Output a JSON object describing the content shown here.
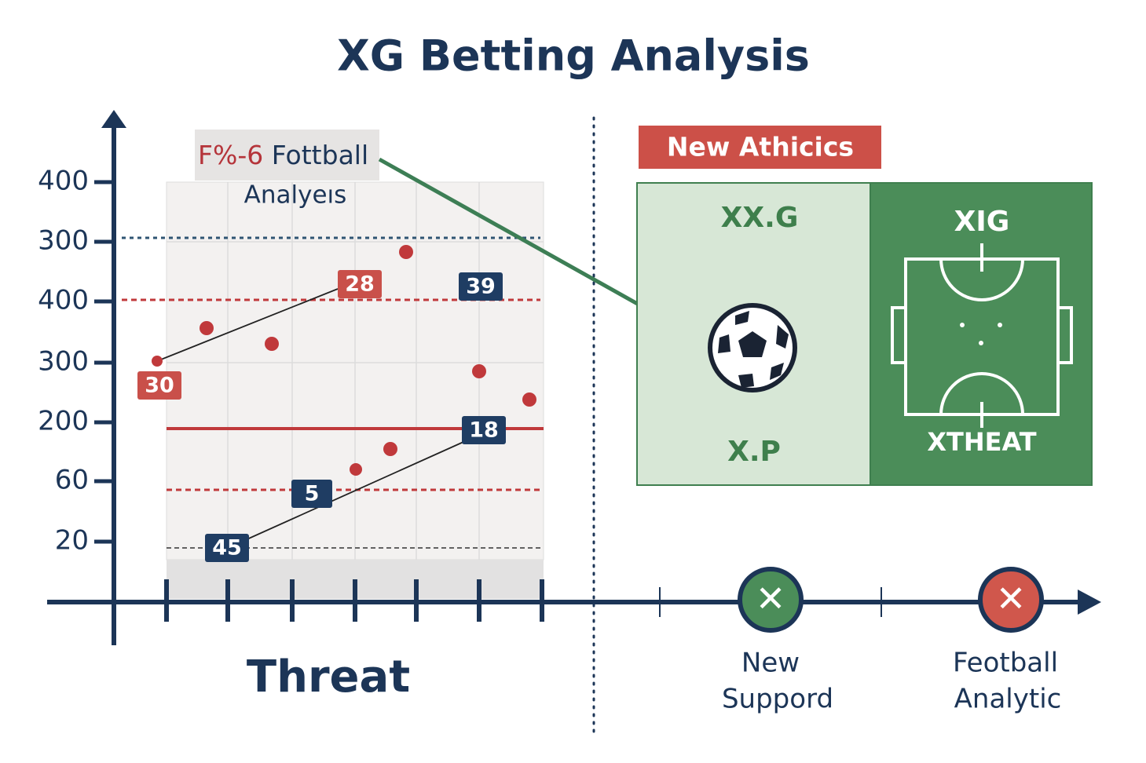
{
  "title": "XG Betting Analysis",
  "y_axis_labels": [
    "400",
    "300",
    "400",
    "300",
    "200",
    "60",
    "20"
  ],
  "panel": {
    "label_prefix": "F%-6",
    "label": "Fottball",
    "sublabel": "Analyeıs"
  },
  "badges": [
    "30",
    "28",
    "39",
    "18",
    "5",
    "45"
  ],
  "x_axis_label": "Threat",
  "metrics": {
    "title": "New Athicics",
    "left_top": "XX.G",
    "left_bottom": "X.P",
    "right_top": "XIG",
    "right_bottom": "XTHEAT"
  },
  "markers": [
    {
      "lines": [
        "New",
        "Suppord"
      ]
    },
    {
      "lines": [
        "Feotball",
        "Analytic"
      ]
    }
  ]
}
